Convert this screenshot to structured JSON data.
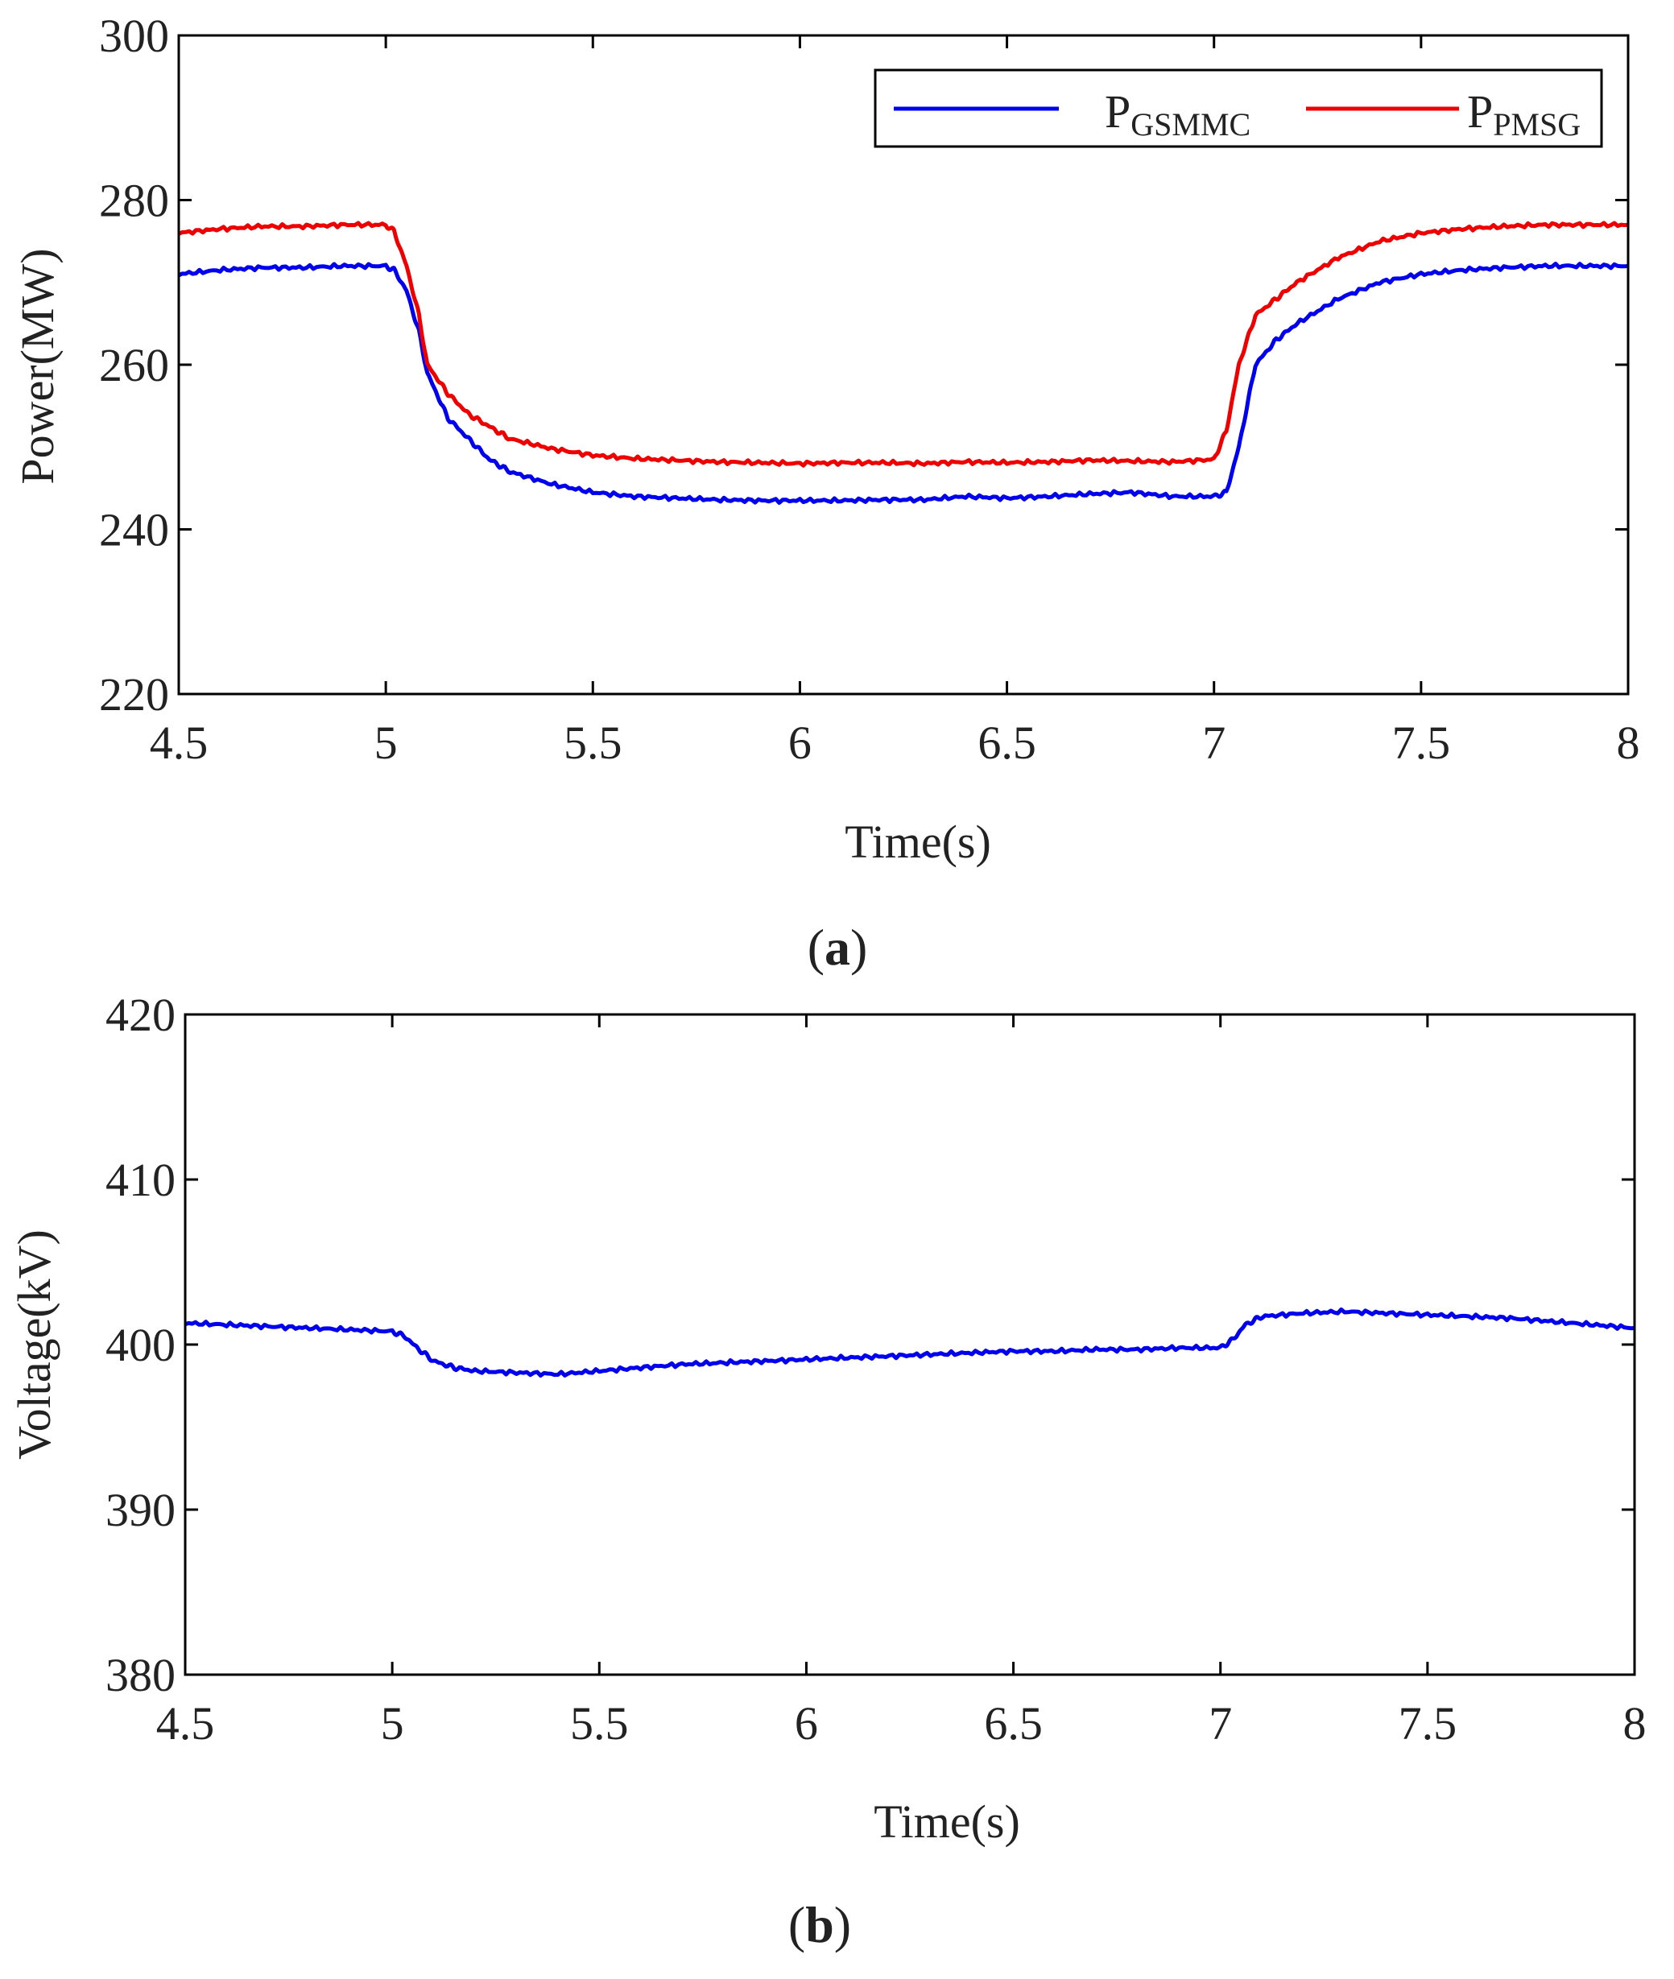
{
  "chart_data": [
    {
      "id": "panel-a",
      "type": "line",
      "panel_label": "a",
      "xlabel": "Time(s)",
      "ylabel": "Power(MW)",
      "xlim": [
        4.5,
        8
      ],
      "ylim": [
        220,
        300
      ],
      "xticks": [
        4.5,
        5,
        5.5,
        6,
        6.5,
        7,
        7.5,
        8
      ],
      "xtick_labels": [
        "4.5",
        "5",
        "5.5",
        "6",
        "6.5",
        "7",
        "7.5",
        "8"
      ],
      "yticks": [
        220,
        240,
        260,
        280,
        300
      ],
      "ytick_labels": [
        "220",
        "240",
        "260",
        "280",
        "300"
      ],
      "legend_placement": "top-right",
      "series": [
        {
          "name": "P",
          "name_sub": "GSMMC",
          "color": "#0000ee",
          "x": [
            4.5,
            4.6,
            4.7,
            4.8,
            4.9,
            5.0,
            5.02,
            5.05,
            5.08,
            5.1,
            5.15,
            5.2,
            5.25,
            5.3,
            5.4,
            5.5,
            5.6,
            5.7,
            5.8,
            5.9,
            6.0,
            6.1,
            6.2,
            6.3,
            6.4,
            6.5,
            6.6,
            6.7,
            6.8,
            6.9,
            7.0,
            7.03,
            7.06,
            7.1,
            7.15,
            7.2,
            7.3,
            7.4,
            7.5,
            7.6,
            7.7,
            7.8,
            7.9,
            8.0
          ],
          "values": [
            271,
            271.5,
            271.8,
            271.8,
            272,
            272,
            271.5,
            269,
            264,
            259,
            253.5,
            251,
            248.5,
            247,
            245.5,
            244.5,
            244,
            243.8,
            243.6,
            243.5,
            243.5,
            243.5,
            243.6,
            243.6,
            244,
            243.8,
            244,
            244.3,
            244.5,
            244,
            244,
            244.5,
            250,
            260,
            263,
            265,
            268,
            270,
            271,
            271.5,
            271.8,
            272,
            272,
            272
          ]
        },
        {
          "name": "P",
          "name_sub": "PMSG",
          "color": "#ee0000",
          "x": [
            4.5,
            4.6,
            4.7,
            4.8,
            4.9,
            5.0,
            5.02,
            5.05,
            5.08,
            5.1,
            5.15,
            5.2,
            5.25,
            5.3,
            5.4,
            5.5,
            5.6,
            5.7,
            5.8,
            5.9,
            6.0,
            6.1,
            6.2,
            6.3,
            6.4,
            6.5,
            6.6,
            6.7,
            6.8,
            6.9,
            7.0,
            7.03,
            7.06,
            7.1,
            7.15,
            7.2,
            7.3,
            7.4,
            7.5,
            7.6,
            7.7,
            7.8,
            7.9,
            8.0
          ],
          "values": [
            276,
            276.5,
            276.8,
            276.8,
            277,
            277,
            276.2,
            272,
            266,
            260,
            256.5,
            254,
            252.5,
            251,
            249.8,
            249,
            248.6,
            248.4,
            248.2,
            248.1,
            248,
            248.1,
            248.1,
            248,
            248.2,
            248.1,
            248.2,
            248.4,
            248.3,
            248.2,
            248.5,
            252,
            260,
            266,
            268,
            270,
            273,
            275,
            276,
            276.5,
            276.8,
            277,
            277,
            277
          ]
        }
      ]
    },
    {
      "id": "panel-b",
      "type": "line",
      "panel_label": "b",
      "xlabel": "Time(s)",
      "ylabel": "Voltage(kV)",
      "xlim": [
        4.5,
        8
      ],
      "ylim": [
        380,
        420
      ],
      "xticks": [
        4.5,
        5,
        5.5,
        6,
        6.5,
        7,
        7.5,
        8
      ],
      "xtick_labels": [
        "4.5",
        "5",
        "5.5",
        "6",
        "6.5",
        "7",
        "7.5",
        "8"
      ],
      "yticks": [
        380,
        390,
        400,
        410,
        420
      ],
      "ytick_labels": [
        "380",
        "390",
        "400",
        "410",
        "420"
      ],
      "series": [
        {
          "name": "Voltage",
          "color": "#0000ee",
          "x": [
            4.5,
            4.6,
            4.7,
            4.8,
            4.9,
            5.0,
            5.03,
            5.06,
            5.1,
            5.15,
            5.2,
            5.3,
            5.4,
            5.5,
            5.6,
            5.7,
            5.8,
            5.9,
            6.0,
            6.1,
            6.2,
            6.3,
            6.4,
            6.5,
            6.6,
            6.7,
            6.8,
            6.9,
            7.0,
            7.03,
            7.06,
            7.1,
            7.2,
            7.3,
            7.4,
            7.5,
            7.6,
            7.7,
            7.8,
            7.9,
            8.0
          ],
          "values": [
            401.3,
            401.2,
            401.1,
            401,
            400.9,
            400.8,
            400.5,
            399.8,
            399,
            398.6,
            398.4,
            398.3,
            398.2,
            398.4,
            398.6,
            398.8,
            398.9,
            399,
            399.1,
            399.2,
            399.3,
            399.4,
            399.5,
            399.6,
            399.6,
            399.7,
            399.7,
            399.8,
            399.8,
            400.3,
            401.2,
            401.7,
            401.9,
            402,
            401.9,
            401.8,
            401.7,
            401.6,
            401.4,
            401.2,
            401
          ]
        }
      ]
    }
  ]
}
